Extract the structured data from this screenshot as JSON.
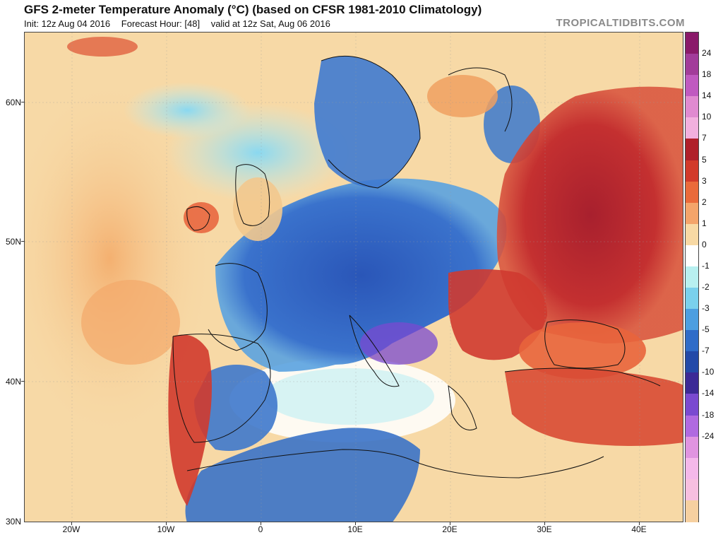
{
  "header": {
    "title": "GFS 2-meter Temperature Anomaly (°C) (based on CFSR 1981-2010 Climatology)",
    "init": "Init: 12z Aug 04 2016",
    "forecast_hour": "Forecast Hour: [48]",
    "valid": "valid at 12z Sat, Aug 06 2016",
    "brand": "TROPICALTIDBITS.COM"
  },
  "axes": {
    "lat_labels": [
      "60N",
      "50N",
      "40N",
      "30N"
    ],
    "lon_labels": [
      "20W",
      "10W",
      "0",
      "10E",
      "20E",
      "30E",
      "40E"
    ]
  },
  "colorbar": {
    "labels": [
      "24",
      "18",
      "14",
      "10",
      "7",
      "5",
      "3",
      "2",
      "1",
      "0",
      "-1",
      "-2",
      "-3",
      "-5",
      "-7",
      "-10",
      "-14",
      "-18",
      "-24"
    ],
    "colors": [
      "#8a1a6a",
      "#a23c9a",
      "#c05ac0",
      "#e08ad0",
      "#f2b0de",
      "#b0202a",
      "#d23a2a",
      "#ea6a3a",
      "#f4a46a",
      "#f8d9a4",
      "#ffffff",
      "#b8f0f0",
      "#7ad0ec",
      "#4c9ee0",
      "#2f6cc8",
      "#234aa8",
      "#3c2a96",
      "#7a4ad0",
      "#b06ae0",
      "#e094e0",
      "#f4b8ea",
      "#f7bfe0",
      "#f6d0a0"
    ]
  }
}
